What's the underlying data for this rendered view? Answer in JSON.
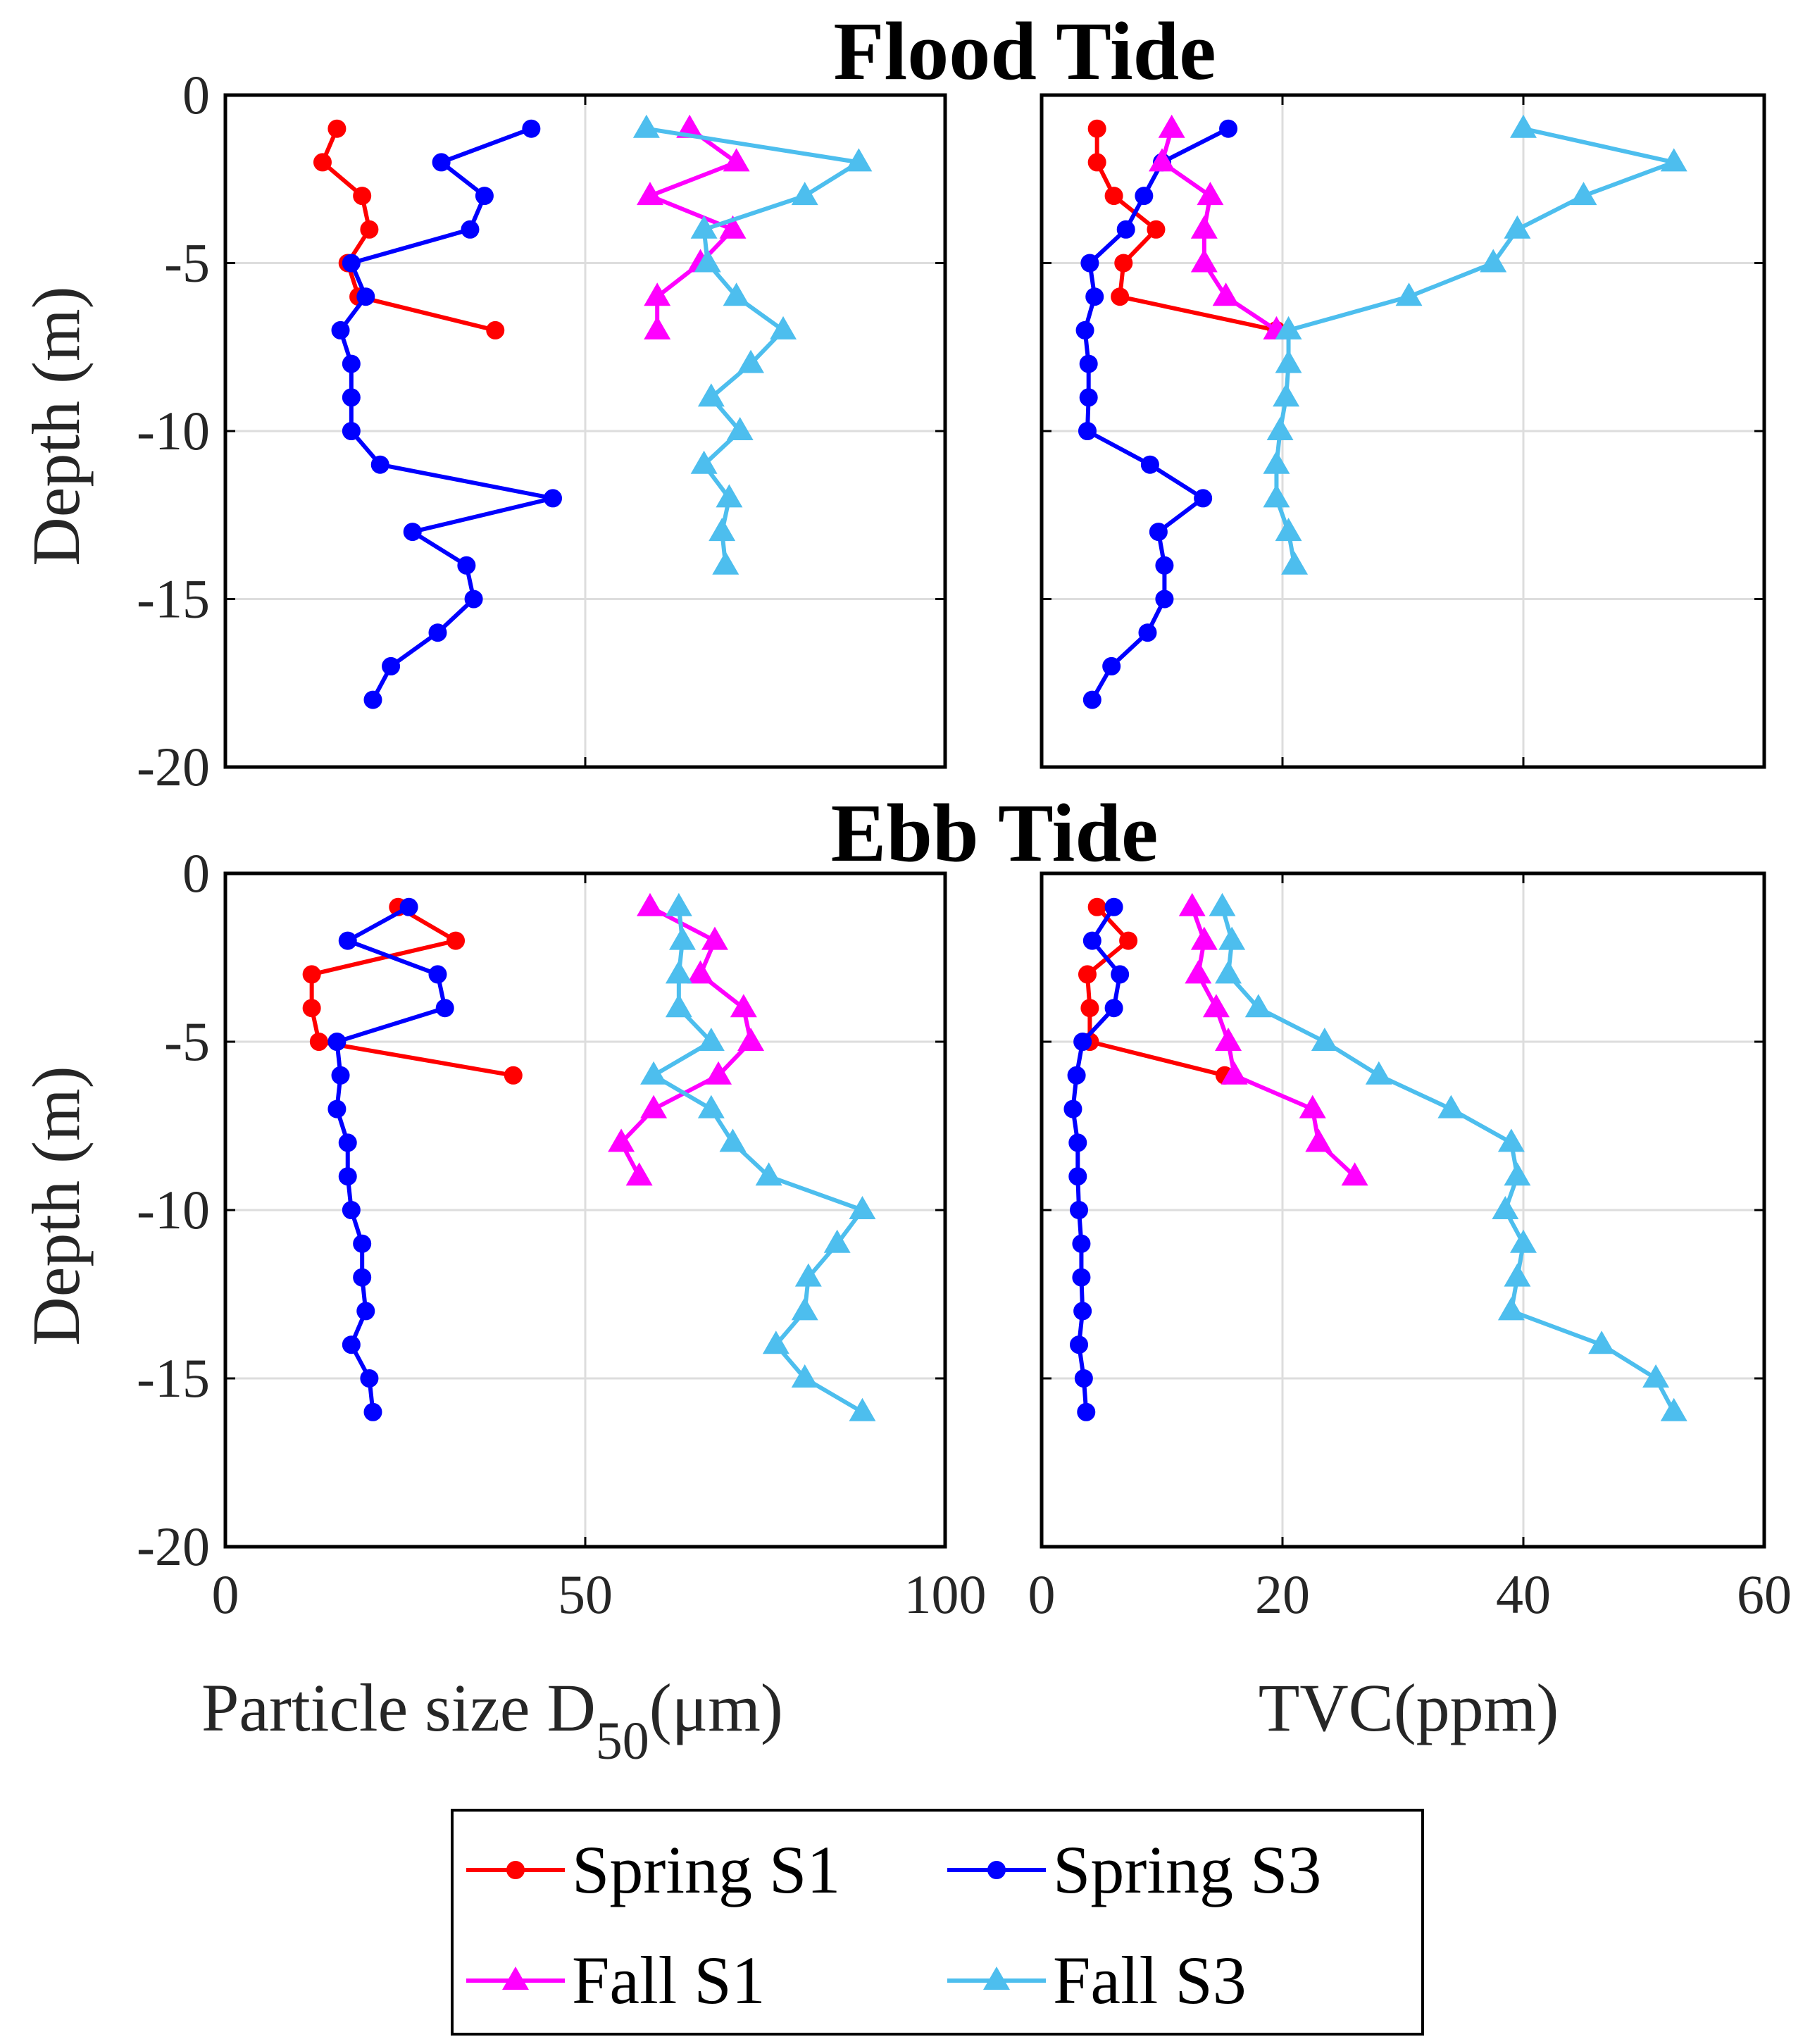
{
  "chart_data": {
    "type": "line",
    "row_titles": [
      "Flood Tide",
      "Ebb Tide"
    ],
    "ylabel": "Depth (m)",
    "ylim": [
      -20,
      0
    ],
    "yticks": [
      0,
      -5,
      -10,
      -15,
      -20
    ],
    "columns": [
      {
        "xlabel_main": "Particle size D",
        "xlabel_sub": "50",
        "xlabel_unit": "(μm)",
        "xlim": [
          0,
          100
        ],
        "xticks": [
          0,
          50,
          100
        ]
      },
      {
        "xlabel_main": "TVC(ppm)",
        "xlabel_sub": "",
        "xlabel_unit": "",
        "xlim": [
          0,
          60
        ],
        "xticks": [
          0,
          20,
          40,
          60
        ]
      }
    ],
    "legend": [
      {
        "name": "Spring S1",
        "color": "#ff0000",
        "marker": "circle"
      },
      {
        "name": "Spring S3",
        "color": "#0000ff",
        "marker": "circle"
      },
      {
        "name": "Fall S1",
        "color": "#ff00ff",
        "marker": "triangle"
      },
      {
        "name": "Fall S3",
        "color": "#4dbeee",
        "marker": "triangle"
      }
    ],
    "panels": [
      {
        "row": 0,
        "col": 0,
        "series": [
          {
            "name": "Spring S1",
            "x": [
              15.5,
              13.5,
              19,
              20,
              17,
              18.5,
              37.5
            ],
            "y": [
              -1,
              -2,
              -3,
              -4,
              -5,
              -6,
              -7
            ]
          },
          {
            "name": "Spring S3",
            "x": [
              42.5,
              30,
              36,
              34,
              17.5,
              19.5,
              16,
              17.5,
              17.5,
              17.5,
              21.5,
              45.5,
              26,
              33.5,
              34.5,
              29.5,
              23,
              20.5
            ],
            "y": [
              -1,
              -2,
              -3,
              -4,
              -5,
              -6,
              -7,
              -8,
              -9,
              -10,
              -11,
              -12,
              -13,
              -14,
              -15,
              -16,
              -17,
              -18
            ]
          },
          {
            "name": "Fall S1",
            "x": [
              64.5,
              71,
              59,
              70.5,
              66,
              60,
              60
            ],
            "y": [
              -1,
              -2,
              -3,
              -4,
              -5,
              -6,
              -7
            ]
          },
          {
            "name": "Fall S3",
            "x": [
              58.5,
              88,
              80.5,
              66.5,
              67,
              71,
              77.5,
              73,
              67.5,
              71.5,
              66.5,
              70,
              69,
              69.5
            ],
            "y": [
              -1,
              -2,
              -3,
              -4,
              -5,
              -6,
              -7,
              -8,
              -9,
              -10,
              -11,
              -12,
              -13,
              -14
            ]
          }
        ]
      },
      {
        "row": 0,
        "col": 1,
        "series": [
          {
            "name": "Spring S1",
            "x": [
              4.6,
              4.6,
              6,
              9.5,
              6.8,
              6.5,
              19.5
            ],
            "y": [
              -1,
              -2,
              -3,
              -4,
              -5,
              -6,
              -7
            ]
          },
          {
            "name": "Spring S3",
            "x": [
              15.5,
              10,
              8.5,
              7,
              4,
              4.4,
              3.6,
              3.9,
              3.9,
              3.8,
              9,
              13.4,
              9.7,
              10.2,
              10.2,
              8.8,
              5.8,
              4.2
            ],
            "y": [
              -1,
              -2,
              -3,
              -4,
              -5,
              -6,
              -7,
              -8,
              -9,
              -10,
              -11,
              -12,
              -13,
              -14,
              -15,
              -16,
              -17,
              -18
            ]
          },
          {
            "name": "Fall S1",
            "x": [
              10.8,
              10,
              14,
              13.5,
              13.5,
              15.3,
              19.5
            ],
            "y": [
              -1,
              -2,
              -3,
              -4,
              -5,
              -6,
              -7
            ]
          },
          {
            "name": "Fall S3",
            "x": [
              40,
              52.5,
              45,
              39.5,
              37.5,
              30.5,
              20.5,
              20.5,
              20.3,
              19.8,
              19.5,
              19.5,
              20.5,
              21
            ],
            "y": [
              -1,
              -2,
              -3,
              -4,
              -5,
              -6,
              -7,
              -8,
              -9,
              -10,
              -11,
              -12,
              -13,
              -14
            ]
          }
        ]
      },
      {
        "row": 1,
        "col": 0,
        "series": [
          {
            "name": "Spring S1",
            "x": [
              24,
              32,
              12,
              12,
              13,
              40
            ],
            "y": [
              -1,
              -2,
              -3,
              -4,
              -5,
              -6
            ]
          },
          {
            "name": "Spring S3",
            "x": [
              25.5,
              17,
              29.5,
              30.5,
              15.5,
              16,
              15.5,
              17,
              17,
              17.5,
              19,
              19,
              19.5,
              17.5,
              20,
              20.5
            ],
            "y": [
              -1,
              -2,
              -3,
              -4,
              -5,
              -6,
              -7,
              -8,
              -9,
              -10,
              -11,
              -12,
              -13,
              -14,
              -15,
              -16
            ]
          },
          {
            "name": "Fall S1",
            "x": [
              59,
              68,
              66,
              72,
              73,
              68.5,
              59.5,
              55,
              57.5
            ],
            "y": [
              -1,
              -2,
              -3,
              -4,
              -5,
              -6,
              -7,
              -8,
              -9
            ]
          },
          {
            "name": "Fall S3",
            "x": [
              63,
              63.5,
              63,
              63,
              67.5,
              59.5,
              67.5,
              70.5,
              75.5,
              88.5,
              85,
              81,
              80.5,
              76.5,
              80.5,
              88.5
            ],
            "y": [
              -1,
              -2,
              -3,
              -4,
              -5,
              -6,
              -7,
              -8,
              -9,
              -10,
              -11,
              -12,
              -13,
              -14,
              -15,
              -16
            ]
          }
        ]
      },
      {
        "row": 1,
        "col": 1,
        "series": [
          {
            "name": "Spring S1",
            "x": [
              4.6,
              7.2,
              3.8,
              4,
              4,
              15.2
            ],
            "y": [
              -1,
              -2,
              -3,
              -4,
              -5,
              -6
            ]
          },
          {
            "name": "Spring S3",
            "x": [
              6,
              4.2,
              6.5,
              6,
              3.4,
              2.9,
              2.6,
              3,
              3,
              3.1,
              3.3,
              3.3,
              3.4,
              3.1,
              3.5,
              3.7
            ],
            "y": [
              -1,
              -2,
              -3,
              -4,
              -5,
              -6,
              -7,
              -8,
              -9,
              -10,
              -11,
              -12,
              -13,
              -14,
              -15,
              -16
            ]
          },
          {
            "name": "Fall S1",
            "x": [
              12.5,
              13.5,
              13,
              14.5,
              15.5,
              16,
              22.5,
              23,
              26
            ],
            "y": [
              -1,
              -2,
              -3,
              -4,
              -5,
              -6,
              -7,
              -8,
              -9
            ]
          },
          {
            "name": "Fall S3",
            "x": [
              15,
              15.8,
              15.5,
              18,
              23.5,
              28,
              34,
              39,
              39.5,
              38.5,
              40,
              39.5,
              39,
              46.5,
              51,
              52.5
            ],
            "y": [
              -1,
              -2,
              -3,
              -4,
              -5,
              -6,
              -7,
              -8,
              -9,
              -10,
              -11,
              -12,
              -13,
              -14,
              -15,
              -16
            ]
          }
        ]
      }
    ]
  }
}
